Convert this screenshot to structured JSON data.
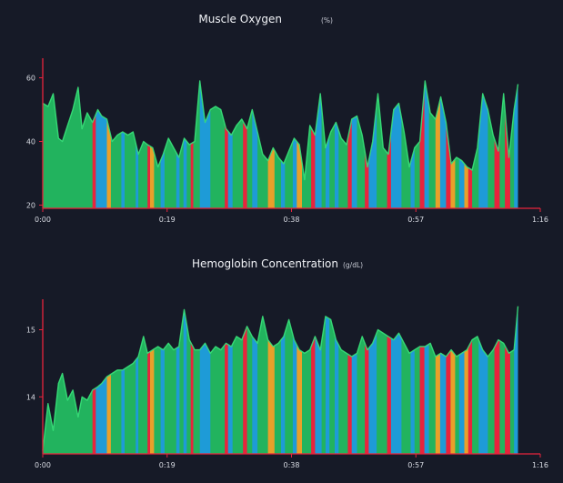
{
  "colors": {
    "background": "#161a27",
    "axis": "#e8243c",
    "zones": {
      "recovery": "#22b35e",
      "aerobic": "#1e9bd7",
      "threshold": "#e8a02a",
      "anaerobic": "#e8243c"
    },
    "line": "#39e27a",
    "text": "#e6e8ee"
  },
  "chart_data": [
    {
      "type": "area",
      "title": "Muscle Oxygen",
      "unit": "(%)",
      "ylim": [
        19,
        65
      ],
      "yticks": [
        "20",
        "40",
        "60"
      ],
      "ytick_values": [
        20,
        40,
        60
      ],
      "xticks": [
        "0:00",
        "0:19",
        "0:38",
        "0:57",
        "1:16"
      ],
      "xtick_values": [
        0,
        19,
        38,
        57,
        76
      ],
      "xlim": [
        0,
        76
      ],
      "series": [
        {
          "name": "Muscle Oxygen",
          "x": [
            0,
            0.8,
            1.6,
            2.4,
            3.0,
            3.8,
            4.6,
            5.4,
            6.0,
            6.8,
            7.6,
            8.4,
            9.0,
            9.8,
            10.6,
            11.4,
            12.2,
            13.0,
            13.8,
            14.6,
            15.4,
            16.0,
            16.8,
            17.6,
            18.4,
            19.2,
            20.0,
            20.8,
            21.6,
            22.4,
            23.2,
            24.0,
            24.8,
            25.6,
            26.4,
            27.2,
            28.0,
            28.8,
            29.6,
            30.4,
            31.2,
            32.0,
            32.8,
            33.6,
            34.4,
            35.2,
            36.0,
            36.8,
            37.6,
            38.4,
            39.2,
            40.0,
            40.8,
            41.6,
            42.4,
            43.2,
            44.0,
            44.8,
            45.6,
            46.4,
            47.2,
            48.0,
            48.8,
            49.6,
            50.4,
            51.2,
            52.0,
            52.8,
            53.6,
            54.4,
            55.2,
            56.0,
            56.8,
            57.6,
            58.4,
            59.2,
            60.0,
            60.8,
            61.6,
            62.4,
            63.2,
            64.0,
            64.8,
            65.6,
            66.4,
            67.2,
            68.0,
            68.8,
            69.6,
            70.4,
            71.2,
            72.0,
            72.6
          ],
          "values": [
            52,
            51,
            55,
            41,
            40,
            45,
            50,
            57,
            44,
            49,
            46,
            50,
            48,
            47,
            40,
            42,
            43,
            42,
            43,
            36,
            40,
            39,
            38,
            32,
            36,
            41,
            38,
            35,
            41,
            39,
            40,
            59,
            46,
            50,
            51,
            50,
            44,
            42,
            45,
            47,
            44,
            50,
            43,
            36,
            34,
            38,
            35,
            33,
            37,
            41,
            39,
            28,
            45,
            42,
            55,
            38,
            43,
            46,
            41,
            39,
            47,
            48,
            42,
            32,
            40,
            55,
            38,
            36,
            50,
            52,
            43,
            32,
            38,
            40,
            59,
            49,
            47,
            54,
            46,
            33,
            35,
            34,
            32,
            31,
            38,
            55,
            50,
            42,
            37,
            55,
            35,
            50,
            58
          ]
        }
      ]
    },
    {
      "type": "area",
      "title": "Hemoglobin Concentration",
      "unit": "(g/dL)",
      "ylim": [
        13.15,
        15.4
      ],
      "yticks": [
        "14",
        "15"
      ],
      "ytick_values": [
        14,
        15
      ],
      "xticks": [
        "0:00",
        "0:19",
        "0:38",
        "0:57",
        "1:16"
      ],
      "xtick_values": [
        0,
        19,
        38,
        57,
        76
      ],
      "xlim": [
        0,
        76
      ],
      "series": [
        {
          "name": "Hemoglobin Concentration",
          "x": [
            0,
            0.8,
            1.6,
            2.4,
            3.0,
            3.8,
            4.6,
            5.4,
            6.0,
            6.8,
            7.6,
            8.4,
            9.0,
            9.8,
            10.6,
            11.4,
            12.2,
            13.0,
            13.8,
            14.6,
            15.4,
            16.0,
            16.8,
            17.6,
            18.4,
            19.2,
            20.0,
            20.8,
            21.6,
            22.4,
            23.2,
            24.0,
            24.8,
            25.6,
            26.4,
            27.2,
            28.0,
            28.8,
            29.6,
            30.4,
            31.2,
            32.0,
            32.8,
            33.6,
            34.4,
            35.2,
            36.0,
            36.8,
            37.6,
            38.4,
            39.2,
            40.0,
            40.8,
            41.6,
            42.4,
            43.2,
            44.0,
            44.8,
            45.6,
            46.4,
            47.2,
            48.0,
            48.8,
            49.6,
            50.4,
            51.2,
            52.0,
            52.8,
            53.6,
            54.4,
            55.2,
            56.0,
            56.8,
            57.6,
            58.4,
            59.2,
            60.0,
            60.8,
            61.6,
            62.4,
            63.2,
            64.0,
            64.8,
            65.6,
            66.4,
            67.2,
            68.0,
            68.8,
            69.6,
            70.4,
            71.2,
            72.0,
            72.6
          ],
          "values": [
            13.2,
            13.9,
            13.5,
            14.2,
            14.35,
            13.95,
            14.1,
            13.7,
            14.0,
            13.95,
            14.1,
            14.15,
            14.2,
            14.3,
            14.35,
            14.4,
            14.4,
            14.45,
            14.5,
            14.6,
            14.9,
            14.65,
            14.7,
            14.75,
            14.7,
            14.8,
            14.7,
            14.75,
            15.3,
            14.85,
            14.7,
            14.7,
            14.8,
            14.65,
            14.75,
            14.7,
            14.8,
            14.75,
            14.9,
            14.85,
            15.05,
            14.9,
            14.8,
            15.2,
            14.85,
            14.75,
            14.8,
            14.9,
            15.15,
            14.85,
            14.7,
            14.65,
            14.7,
            14.9,
            14.7,
            15.2,
            15.15,
            14.85,
            14.7,
            14.65,
            14.6,
            14.65,
            14.9,
            14.7,
            14.8,
            15.0,
            14.95,
            14.9,
            14.85,
            14.95,
            14.8,
            14.65,
            14.7,
            14.75,
            14.75,
            14.8,
            14.6,
            14.65,
            14.6,
            14.7,
            14.6,
            14.65,
            14.7,
            14.85,
            14.9,
            14.7,
            14.6,
            14.7,
            14.85,
            14.8,
            14.65,
            14.7,
            15.35
          ]
        }
      ]
    }
  ],
  "zone_bands": [
    {
      "from": 0,
      "to": 7.6,
      "zone": "recovery"
    },
    {
      "from": 7.6,
      "to": 8.1,
      "zone": "anaerobic"
    },
    {
      "from": 8.1,
      "to": 9.8,
      "zone": "aerobic"
    },
    {
      "from": 9.8,
      "to": 10.4,
      "zone": "threshold"
    },
    {
      "from": 10.4,
      "to": 12.0,
      "zone": "recovery"
    },
    {
      "from": 12.0,
      "to": 12.5,
      "zone": "aerobic"
    },
    {
      "from": 12.5,
      "to": 14.2,
      "zone": "recovery"
    },
    {
      "from": 14.2,
      "to": 14.6,
      "zone": "aerobic"
    },
    {
      "from": 14.6,
      "to": 16.0,
      "zone": "recovery"
    },
    {
      "from": 16.0,
      "to": 16.4,
      "zone": "anaerobic"
    },
    {
      "from": 16.4,
      "to": 17.0,
      "zone": "threshold"
    },
    {
      "from": 17.0,
      "to": 18.0,
      "zone": "recovery"
    },
    {
      "from": 18.0,
      "to": 18.6,
      "zone": "aerobic"
    },
    {
      "from": 18.6,
      "to": 20.4,
      "zone": "recovery"
    },
    {
      "from": 20.4,
      "to": 20.9,
      "zone": "aerobic"
    },
    {
      "from": 20.9,
      "to": 21.5,
      "zone": "recovery"
    },
    {
      "from": 21.5,
      "to": 22.0,
      "zone": "aerobic"
    },
    {
      "from": 22.0,
      "to": 22.6,
      "zone": "recovery"
    },
    {
      "from": 22.6,
      "to": 23.0,
      "zone": "anaerobic"
    },
    {
      "from": 23.0,
      "to": 24.0,
      "zone": "recovery"
    },
    {
      "from": 24.0,
      "to": 25.6,
      "zone": "aerobic"
    },
    {
      "from": 25.6,
      "to": 27.8,
      "zone": "recovery"
    },
    {
      "from": 27.8,
      "to": 28.3,
      "zone": "anaerobic"
    },
    {
      "from": 28.3,
      "to": 29.0,
      "zone": "aerobic"
    },
    {
      "from": 29.0,
      "to": 30.6,
      "zone": "recovery"
    },
    {
      "from": 30.6,
      "to": 31.2,
      "zone": "anaerobic"
    },
    {
      "from": 31.2,
      "to": 32.0,
      "zone": "recovery"
    },
    {
      "from": 32.0,
      "to": 32.8,
      "zone": "aerobic"
    },
    {
      "from": 32.8,
      "to": 34.4,
      "zone": "recovery"
    },
    {
      "from": 34.4,
      "to": 35.4,
      "zone": "threshold"
    },
    {
      "from": 35.4,
      "to": 36.4,
      "zone": "recovery"
    },
    {
      "from": 36.4,
      "to": 37.0,
      "zone": "aerobic"
    },
    {
      "from": 37.0,
      "to": 38.2,
      "zone": "recovery"
    },
    {
      "from": 38.2,
      "to": 38.8,
      "zone": "aerobic"
    },
    {
      "from": 38.8,
      "to": 39.6,
      "zone": "threshold"
    },
    {
      "from": 39.6,
      "to": 41.0,
      "zone": "recovery"
    },
    {
      "from": 41.0,
      "to": 41.6,
      "zone": "anaerobic"
    },
    {
      "from": 41.6,
      "to": 42.6,
      "zone": "aerobic"
    },
    {
      "from": 42.6,
      "to": 43.2,
      "zone": "recovery"
    },
    {
      "from": 43.2,
      "to": 43.8,
      "zone": "aerobic"
    },
    {
      "from": 43.8,
      "to": 44.6,
      "zone": "recovery"
    },
    {
      "from": 44.6,
      "to": 45.2,
      "zone": "aerobic"
    },
    {
      "from": 45.2,
      "to": 46.6,
      "zone": "recovery"
    },
    {
      "from": 46.6,
      "to": 47.2,
      "zone": "anaerobic"
    },
    {
      "from": 47.2,
      "to": 48.0,
      "zone": "aerobic"
    },
    {
      "from": 48.0,
      "to": 49.2,
      "zone": "recovery"
    },
    {
      "from": 49.2,
      "to": 49.8,
      "zone": "anaerobic"
    },
    {
      "from": 49.8,
      "to": 51.0,
      "zone": "aerobic"
    },
    {
      "from": 51.0,
      "to": 52.6,
      "zone": "recovery"
    },
    {
      "from": 52.6,
      "to": 53.2,
      "zone": "anaerobic"
    },
    {
      "from": 53.2,
      "to": 54.8,
      "zone": "aerobic"
    },
    {
      "from": 54.8,
      "to": 56.2,
      "zone": "recovery"
    },
    {
      "from": 56.2,
      "to": 56.8,
      "zone": "aerobic"
    },
    {
      "from": 56.8,
      "to": 57.6,
      "zone": "recovery"
    },
    {
      "from": 57.6,
      "to": 58.3,
      "zone": "anaerobic"
    },
    {
      "from": 58.3,
      "to": 59.0,
      "zone": "aerobic"
    },
    {
      "from": 59.0,
      "to": 60.0,
      "zone": "recovery"
    },
    {
      "from": 60.0,
      "to": 60.7,
      "zone": "threshold"
    },
    {
      "from": 60.7,
      "to": 61.6,
      "zone": "aerobic"
    },
    {
      "from": 61.6,
      "to": 62.3,
      "zone": "anaerobic"
    },
    {
      "from": 62.3,
      "to": 63.0,
      "zone": "threshold"
    },
    {
      "from": 63.0,
      "to": 63.6,
      "zone": "recovery"
    },
    {
      "from": 63.6,
      "to": 64.4,
      "zone": "aerobic"
    },
    {
      "from": 64.4,
      "to": 65.0,
      "zone": "threshold"
    },
    {
      "from": 65.0,
      "to": 65.6,
      "zone": "anaerobic"
    },
    {
      "from": 65.6,
      "to": 66.6,
      "zone": "recovery"
    },
    {
      "from": 66.6,
      "to": 68.0,
      "zone": "aerobic"
    },
    {
      "from": 68.0,
      "to": 69.0,
      "zone": "recovery"
    },
    {
      "from": 69.0,
      "to": 69.8,
      "zone": "anaerobic"
    },
    {
      "from": 69.8,
      "to": 70.6,
      "zone": "recovery"
    },
    {
      "from": 70.6,
      "to": 71.4,
      "zone": "anaerobic"
    },
    {
      "from": 71.4,
      "to": 72.0,
      "zone": "recovery"
    },
    {
      "from": 72.0,
      "to": 72.6,
      "zone": "aerobic"
    }
  ]
}
